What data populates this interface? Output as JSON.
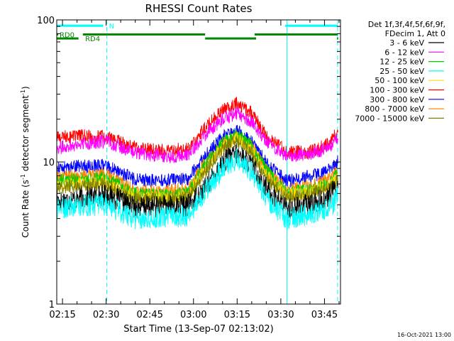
{
  "chart_data": {
    "type": "line",
    "title": "RHESSI Count Rates",
    "xlabel": "Start Time (13-Sep-07 02:13:02)",
    "ylabel_main": "Count Rate (s",
    "ylabel_sup": "-1",
    "ylabel_rest": " detector segment",
    "ylabel_sup2": "-1",
    "ylabel_end": ")",
    "y_scale": "log",
    "ylim": [
      1,
      100
    ],
    "y_ticks": [
      {
        "value": 1,
        "label": "1"
      },
      {
        "value": 10,
        "label": "10"
      },
      {
        "value": 100,
        "label": "100"
      }
    ],
    "x_ticks": [
      "02:15",
      "02:30",
      "02:45",
      "03:00",
      "03:15",
      "03:30",
      "03:45"
    ],
    "x_tick_minutes": [
      15,
      30,
      45,
      60,
      75,
      90,
      105
    ],
    "x_range_minutes": [
      13.03,
      110.5
    ],
    "legend_header": [
      "Det 1f,3f,4f,5f,6f,9f,",
      "FDecim 1, Att 0"
    ],
    "legend_position": "right, outside plot",
    "series": [
      {
        "name": "3 - 6 keV",
        "color": "#000000",
        "points": [
          [
            13,
            5.3
          ],
          [
            20,
            5.5
          ],
          [
            30,
            5.9
          ],
          [
            40,
            4.8
          ],
          [
            50,
            4.9
          ],
          [
            58,
            4.9
          ],
          [
            64,
            6.6
          ],
          [
            70,
            10.0
          ],
          [
            75,
            11.5
          ],
          [
            80,
            9.5
          ],
          [
            85,
            6.5
          ],
          [
            92,
            4.7
          ],
          [
            100,
            5.0
          ],
          [
            106,
            5.6
          ],
          [
            108,
            6.3
          ],
          [
            110,
            7.0
          ]
        ]
      },
      {
        "name": "6 - 12 keV",
        "color": "#ff00ff",
        "points": [
          [
            13,
            12.5
          ],
          [
            20,
            13.3
          ],
          [
            30,
            14.0
          ],
          [
            40,
            11.6
          ],
          [
            50,
            10.9
          ],
          [
            58,
            11.1
          ],
          [
            64,
            15.5
          ],
          [
            70,
            20.0
          ],
          [
            75,
            22.0
          ],
          [
            80,
            19.0
          ],
          [
            85,
            14.0
          ],
          [
            92,
            11.0
          ],
          [
            100,
            11.4
          ],
          [
            106,
            12.5
          ],
          [
            108,
            13.5
          ],
          [
            110,
            15.5
          ]
        ]
      },
      {
        "name": "12 - 25 keV",
        "color": "#00cc00",
        "points": [
          [
            13,
            7.4
          ],
          [
            20,
            7.5
          ],
          [
            30,
            7.6
          ],
          [
            40,
            6.0
          ],
          [
            50,
            5.8
          ],
          [
            58,
            6.0
          ],
          [
            64,
            9.5
          ],
          [
            70,
            14.0
          ],
          [
            75,
            15.5
          ],
          [
            80,
            13.0
          ],
          [
            85,
            8.8
          ],
          [
            92,
            6.1
          ],
          [
            100,
            6.4
          ],
          [
            106,
            7.0
          ],
          [
            108,
            7.5
          ],
          [
            110,
            8.5
          ]
        ]
      },
      {
        "name": "25 - 50 keV",
        "color": "#00ffff",
        "points": [
          [
            13,
            4.7
          ],
          [
            20,
            4.9
          ],
          [
            30,
            5.0
          ],
          [
            40,
            4.0
          ],
          [
            50,
            4.1
          ],
          [
            58,
            4.2
          ],
          [
            64,
            6.2
          ],
          [
            70,
            9.0
          ],
          [
            75,
            10.5
          ],
          [
            80,
            8.5
          ],
          [
            85,
            5.6
          ],
          [
            92,
            4.0
          ],
          [
            100,
            4.3
          ],
          [
            106,
            4.7
          ],
          [
            108,
            5.0
          ],
          [
            110,
            6.0
          ]
        ]
      },
      {
        "name": "50 - 100 keV",
        "color": "#ffdd00",
        "points": [
          [
            13,
            6.8
          ],
          [
            20,
            7.0
          ],
          [
            30,
            7.2
          ],
          [
            40,
            5.7
          ],
          [
            50,
            5.6
          ],
          [
            58,
            5.8
          ],
          [
            64,
            8.8
          ],
          [
            70,
            13.0
          ],
          [
            75,
            14.5
          ],
          [
            80,
            12.0
          ],
          [
            85,
            8.0
          ],
          [
            92,
            5.8
          ],
          [
            100,
            6.1
          ],
          [
            106,
            6.8
          ],
          [
            108,
            7.2
          ],
          [
            110,
            8.0
          ]
        ]
      },
      {
        "name": "100 - 300 keV",
        "color": "#ff0000",
        "points": [
          [
            13,
            14.8
          ],
          [
            20,
            15.3
          ],
          [
            30,
            15.0
          ],
          [
            40,
            12.7
          ],
          [
            50,
            12.0
          ],
          [
            58,
            12.4
          ],
          [
            64,
            17.5
          ],
          [
            70,
            23.0
          ],
          [
            75,
            26.0
          ],
          [
            80,
            22.0
          ],
          [
            85,
            15.3
          ],
          [
            92,
            11.7
          ],
          [
            100,
            11.7
          ],
          [
            106,
            13.3
          ],
          [
            108,
            14.6
          ],
          [
            110,
            17.5
          ]
        ]
      },
      {
        "name": "300 - 800 keV",
        "color": "#0000ff",
        "points": [
          [
            13,
            9.0
          ],
          [
            20,
            9.3
          ],
          [
            30,
            9.4
          ],
          [
            40,
            7.5
          ],
          [
            50,
            7.4
          ],
          [
            58,
            7.6
          ],
          [
            64,
            11.0
          ],
          [
            70,
            15.0
          ],
          [
            75,
            16.5
          ],
          [
            80,
            14.0
          ],
          [
            85,
            9.8
          ],
          [
            92,
            7.3
          ],
          [
            100,
            7.9
          ],
          [
            106,
            8.6
          ],
          [
            108,
            9.3
          ],
          [
            110,
            10.5
          ]
        ]
      },
      {
        "name": "800 - 7000 keV",
        "color": "#ff8800",
        "points": [
          [
            13,
            7.8
          ],
          [
            20,
            8.0
          ],
          [
            30,
            8.1
          ],
          [
            40,
            6.3
          ],
          [
            50,
            6.2
          ],
          [
            58,
            6.4
          ],
          [
            64,
            9.8
          ],
          [
            70,
            13.5
          ],
          [
            75,
            15.0
          ],
          [
            80,
            12.8
          ],
          [
            85,
            8.7
          ],
          [
            92,
            6.4
          ],
          [
            100,
            6.8
          ],
          [
            106,
            7.4
          ],
          [
            108,
            8.0
          ],
          [
            110,
            9.0
          ]
        ]
      },
      {
        "name": "7000 - 15000 keV",
        "color": "#808000",
        "points": [
          [
            13,
            6.6
          ],
          [
            20,
            6.8
          ],
          [
            30,
            7.0
          ],
          [
            40,
            5.5
          ],
          [
            50,
            5.4
          ],
          [
            58,
            5.6
          ],
          [
            64,
            8.5
          ],
          [
            70,
            12.5
          ],
          [
            75,
            14.0
          ],
          [
            80,
            11.5
          ],
          [
            85,
            7.7
          ],
          [
            92,
            5.6
          ],
          [
            100,
            5.9
          ],
          [
            106,
            6.5
          ],
          [
            108,
            6.9
          ],
          [
            110,
            7.8
          ]
        ]
      }
    ],
    "vertical_lines": [
      {
        "minute": 13.03,
        "style": "solid",
        "color": "#00ffff"
      },
      {
        "minute": 30.2,
        "style": "dashed",
        "color": "#00ffff"
      },
      {
        "minute": 92.1,
        "style": "solid",
        "color": "#00ffff"
      },
      {
        "minute": 109.5,
        "style": "dashed",
        "color": "#00ffff"
      }
    ],
    "flag_bars": [
      {
        "label": "N",
        "color": "#00ffff",
        "y_value": 91,
        "label_minute": 31.0,
        "segments": [
          [
            13.03,
            29.0
          ],
          [
            91.5,
            109.5
          ]
        ]
      },
      {
        "label": "RD0",
        "color": "#008800",
        "y_value": 79,
        "label_minute": 14.0,
        "segments": [
          [
            13.03,
            13.5
          ],
          [
            22.0,
            64.0
          ],
          [
            81.0,
            109.5
          ]
        ]
      },
      {
        "label": "RD4",
        "color": "#008800",
        "y_value": 74,
        "label_minute": 22.8,
        "segments": [
          [
            13.03,
            20.5
          ],
          [
            64.0,
            81.5
          ],
          [
            109.3,
            109.7
          ]
        ]
      }
    ],
    "footer_date": "16-Oct-2021 13:00"
  }
}
